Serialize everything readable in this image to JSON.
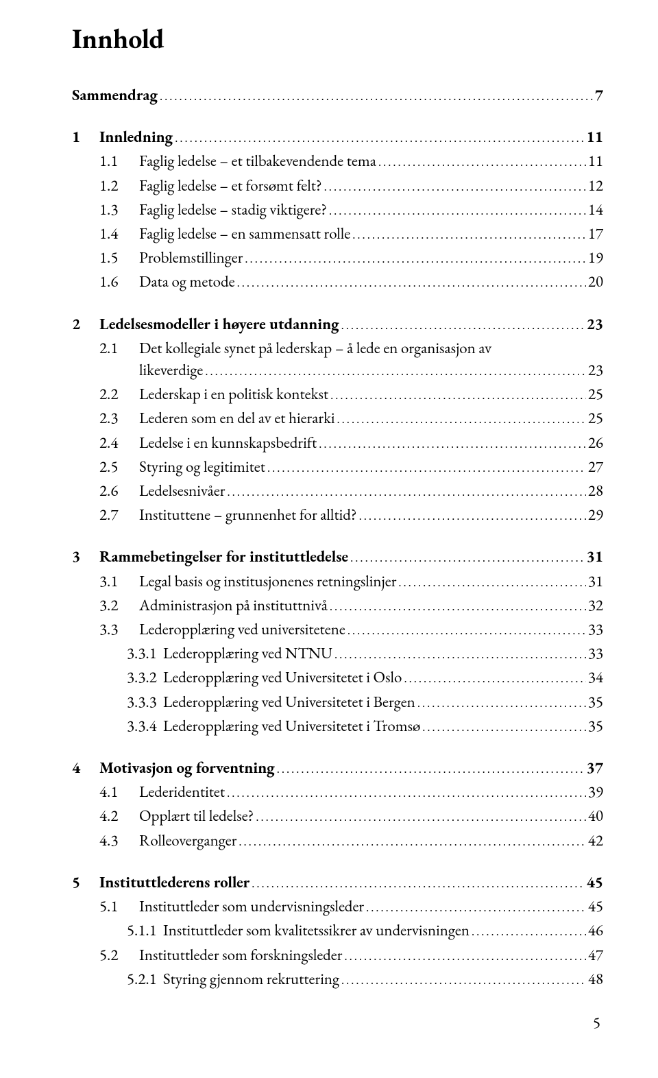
{
  "title": "Innhold",
  "title_fontsize": 40,
  "body_fontsize": 23,
  "dots_color": "#000000",
  "page_number": "5",
  "toc": [
    {
      "type": "top",
      "num": "",
      "label": "Sammendrag",
      "page": "7",
      "bold": true
    },
    {
      "type": "gap"
    },
    {
      "type": "top",
      "num": "1",
      "label": "Innledning",
      "page": "11",
      "bold": true
    },
    {
      "type": "sub1",
      "num": "1.1",
      "label": "Faglig ledelse – et tilbakevendende tema",
      "page": "11"
    },
    {
      "type": "sub1",
      "num": "1.2",
      "label": "Faglig ledelse – et forsømt felt?",
      "page": "12"
    },
    {
      "type": "sub1",
      "num": "1.3",
      "label": "Faglig ledelse – stadig viktigere?",
      "page": "14"
    },
    {
      "type": "sub1",
      "num": "1.4",
      "label": "Faglig ledelse – en sammensatt rolle",
      "page": "17"
    },
    {
      "type": "sub1",
      "num": "1.5",
      "label": "Problemstillinger",
      "page": "19"
    },
    {
      "type": "sub1",
      "num": "1.6",
      "label": "Data og metode",
      "page": "20"
    },
    {
      "type": "gap"
    },
    {
      "type": "top",
      "num": "2",
      "label": "Ledelsesmodeller i høyere utdanning",
      "page": "23",
      "bold": true
    },
    {
      "type": "sub1wrap",
      "num": "2.1",
      "label1": "Det kollegiale synet på lederskap –  å lede en organisasjon av",
      "label2": "likeverdige",
      "page": "23"
    },
    {
      "type": "sub1",
      "num": "2.2",
      "label": "Lederskap i en politisk kontekst",
      "page": "25"
    },
    {
      "type": "sub1",
      "num": "2.3",
      "label": "Lederen som en del av et hierarki",
      "page": "25"
    },
    {
      "type": "sub1",
      "num": "2.4",
      "label": "Ledelse i en kunnskapsbedrift",
      "page": "26"
    },
    {
      "type": "sub1",
      "num": "2.5",
      "label": "Styring og legitimitet",
      "page": "27"
    },
    {
      "type": "sub1",
      "num": "2.6",
      "label": "Ledelsesnivåer",
      "page": "28"
    },
    {
      "type": "sub1",
      "num": "2.7",
      "label": "Instituttene – grunnenhet for alltid?",
      "page": "29"
    },
    {
      "type": "gap"
    },
    {
      "type": "top",
      "num": "3",
      "label": "Rammebetingelser for instituttledelse",
      "page": "31",
      "bold": true
    },
    {
      "type": "sub1",
      "num": "3.1",
      "label": "Legal basis og institusjonenes retningslinjer",
      "page": "31"
    },
    {
      "type": "sub1",
      "num": "3.2",
      "label": "Administrasjon på instituttnivå",
      "page": "32"
    },
    {
      "type": "sub1",
      "num": "3.3",
      "label": "Lederopplæring ved universitetene",
      "page": "33"
    },
    {
      "type": "sub2",
      "num": "3.3.1",
      "label": "Lederopplæring ved NTNU",
      "page": "33"
    },
    {
      "type": "sub2",
      "num": "3.3.2",
      "label": "Lederopplæring ved Universitetet i Oslo",
      "page": "34"
    },
    {
      "type": "sub2",
      "num": "3.3.3",
      "label": "Lederopplæring ved Universitetet i Bergen",
      "page": "35"
    },
    {
      "type": "sub2",
      "num": "3.3.4",
      "label": "Lederopplæring ved Universitetet i Tromsø",
      "page": "35"
    },
    {
      "type": "gap"
    },
    {
      "type": "top",
      "num": "4",
      "label": "Motivasjon og forventning",
      "page": "37",
      "bold": true
    },
    {
      "type": "sub1",
      "num": "4.1",
      "label": "Lederidentitet",
      "page": "39"
    },
    {
      "type": "sub1",
      "num": "4.2",
      "label": "Opplært til ledelse?",
      "page": "40"
    },
    {
      "type": "sub1",
      "num": "4.3",
      "label": "Rolleoverganger",
      "page": "42"
    },
    {
      "type": "gap"
    },
    {
      "type": "top",
      "num": "5",
      "label": "Instituttlederens roller",
      "page": "45",
      "bold": true
    },
    {
      "type": "sub1",
      "num": "5.1",
      "label": "Instituttleder som undervisningsleder",
      "page": "45"
    },
    {
      "type": "sub2",
      "num": "5.1.1",
      "label": "Instituttleder som kvalitetssikrer av undervisningen",
      "page": "46"
    },
    {
      "type": "sub1",
      "num": "5.2",
      "label": "Instituttleder som forskningsleder",
      "page": "47"
    },
    {
      "type": "sub2",
      "num": "5.2.1",
      "label": "Styring gjennom rekruttering",
      "page": "48"
    }
  ]
}
